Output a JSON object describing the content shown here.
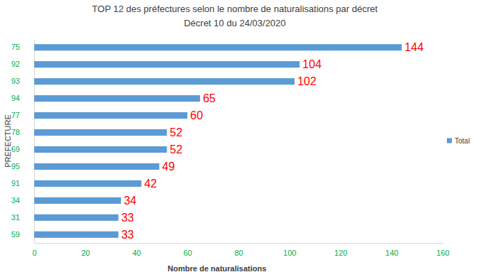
{
  "chart_data": {
    "type": "bar",
    "orientation": "horizontal",
    "title": "TOP 12 des préfectures selon le nombre de naturalisations par décret",
    "subtitle": "Décret 10 du 24/03/2020",
    "x_label": "Nombre de naturalisations",
    "y_label": "PREFECTURE",
    "categories": [
      "75",
      "92",
      "93",
      "94",
      "77",
      "78",
      "69",
      "95",
      "91",
      "34",
      "31",
      "59"
    ],
    "series": [
      {
        "name": "Total",
        "color": "#5b9bd5",
        "values": [
          144,
          104,
          102,
          65,
          60,
          52,
          52,
          49,
          42,
          34,
          33,
          33
        ]
      }
    ],
    "xlim": [
      0,
      160
    ],
    "xticks": [
      0,
      20,
      40,
      60,
      80,
      100,
      120,
      140,
      160
    ],
    "grid": false,
    "legend": "right",
    "data_labels": true
  }
}
